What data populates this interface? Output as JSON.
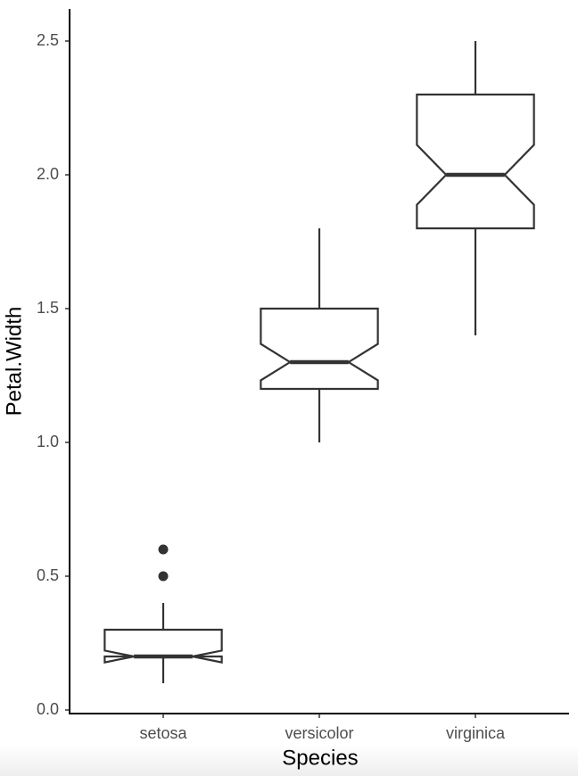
{
  "chart_data": {
    "type": "boxplot",
    "xlabel": "Species",
    "ylabel": "Petal.Width",
    "categories": [
      "setosa",
      "versicolor",
      "virginica"
    ],
    "boxes": [
      {
        "min": 0.1,
        "q1": 0.2,
        "median": 0.2,
        "q3": 0.3,
        "max": 0.4,
        "notch_low": 0.178,
        "notch_high": 0.222,
        "outliers": [
          0.5,
          0.6
        ]
      },
      {
        "min": 1.0,
        "q1": 1.2,
        "median": 1.3,
        "q3": 1.5,
        "max": 1.8,
        "notch_low": 1.232,
        "notch_high": 1.368,
        "outliers": []
      },
      {
        "min": 1.4,
        "q1": 1.8,
        "median": 2.0,
        "q3": 2.3,
        "max": 2.5,
        "notch_low": 1.888,
        "notch_high": 2.112,
        "outliers": []
      }
    ],
    "color": "#333333",
    "ylim": [
      -0.02,
      2.62
    ],
    "yticks": [
      {
        "value": 0,
        "label": "0.0"
      },
      0.5,
      {
        "value": 1,
        "label": "1.0"
      },
      1.5,
      {
        "value": 2,
        "label": "2.0"
      },
      2.5
    ]
  }
}
